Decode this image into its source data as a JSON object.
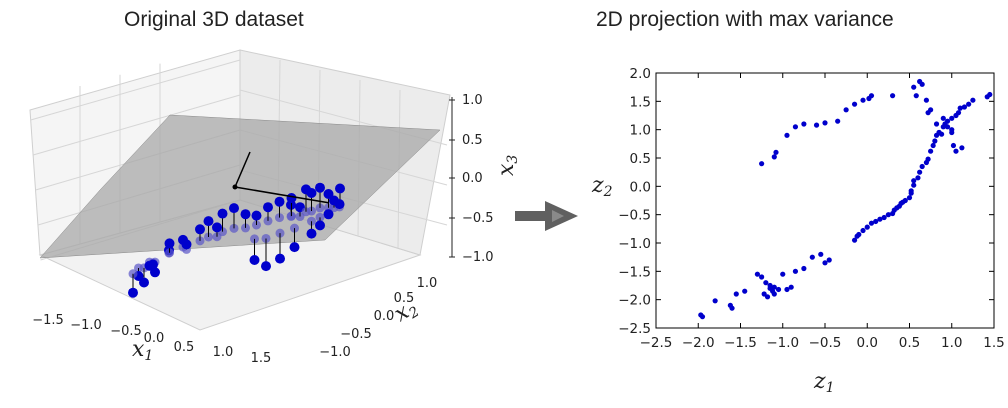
{
  "chart_data": [
    {
      "type": "scatter",
      "projection": "3d",
      "title": "Original 3D dataset",
      "xlabel": "x1",
      "ylabel": "x2",
      "zlabel": "x3",
      "x_ticks": [
        "−1.5",
        "−1.0",
        "−0.5",
        "0.0",
        "0.5",
        "1.0",
        "1.5"
      ],
      "y_ticks": [
        "−1.0",
        "−0.5",
        "0.0",
        "0.5",
        "1.0"
      ],
      "z_ticks": [
        "−1.0",
        "−0.5",
        "0.0",
        "0.5",
        "1.0"
      ],
      "xlim": [
        -1.8,
        1.8
      ],
      "ylim": [
        -1.2,
        1.2
      ],
      "zlim": [
        -1.1,
        1.1
      ],
      "grid": true,
      "plane": "gray projection plane through the data",
      "point_color": "#0000cc",
      "points": [
        {
          "x": -1.15,
          "y": -0.55,
          "z": -0.3
        },
        {
          "x": -1.1,
          "y": -0.5,
          "z": -0.45
        },
        {
          "x": -1.05,
          "y": -0.45,
          "z": -0.2
        },
        {
          "x": -1.2,
          "y": -0.6,
          "z": -0.55
        },
        {
          "x": -1.0,
          "y": -0.4,
          "z": -0.35
        },
        {
          "x": -0.95,
          "y": -0.5,
          "z": -0.15
        },
        {
          "x": -0.85,
          "y": -0.3,
          "z": -0.05
        },
        {
          "x": -0.7,
          "y": -0.2,
          "z": 0.05
        },
        {
          "x": -0.6,
          "y": -0.25,
          "z": 0.0
        },
        {
          "x": -0.5,
          "y": -0.1,
          "z": 0.15
        },
        {
          "x": -0.4,
          "y": -0.05,
          "z": 0.25
        },
        {
          "x": -0.25,
          "y": 0.05,
          "z": 0.3
        },
        {
          "x": -0.1,
          "y": 0.1,
          "z": 0.35
        },
        {
          "x": 0.05,
          "y": 0.15,
          "z": 0.2
        },
        {
          "x": 0.15,
          "y": 0.25,
          "z": 0.1
        },
        {
          "x": 0.3,
          "y": 0.3,
          "z": 0.2
        },
        {
          "x": 0.45,
          "y": 0.35,
          "z": 0.25
        },
        {
          "x": 0.6,
          "y": 0.4,
          "z": 0.15
        },
        {
          "x": 0.75,
          "y": 0.4,
          "z": 0.1
        },
        {
          "x": 0.9,
          "y": 0.45,
          "z": 0.3
        },
        {
          "x": 1.0,
          "y": 0.5,
          "z": 0.35
        },
        {
          "x": 1.1,
          "y": 0.55,
          "z": 0.2
        },
        {
          "x": 1.15,
          "y": 0.6,
          "z": 0.05
        },
        {
          "x": 1.1,
          "y": 0.55,
          "z": -0.15
        },
        {
          "x": 1.0,
          "y": 0.5,
          "z": -0.3
        },
        {
          "x": 0.9,
          "y": 0.45,
          "z": -0.4
        },
        {
          "x": 0.7,
          "y": 0.35,
          "z": -0.55
        },
        {
          "x": 0.5,
          "y": 0.3,
          "z": -0.7
        },
        {
          "x": 0.35,
          "y": 0.2,
          "z": -0.75
        },
        {
          "x": 0.2,
          "y": 0.15,
          "z": -0.6
        },
        {
          "x": 1.25,
          "y": 0.6,
          "z": 0.25
        },
        {
          "x": 1.2,
          "y": 0.65,
          "z": -0.05
        },
        {
          "x": 0.85,
          "y": 0.4,
          "z": 0.4
        },
        {
          "x": 0.65,
          "y": 0.35,
          "z": 0.3
        },
        {
          "x": -0.8,
          "y": -0.35,
          "z": 0.1
        },
        {
          "x": -0.3,
          "y": 0.0,
          "z": 0.1
        }
      ]
    },
    {
      "type": "scatter",
      "title": "2D projection with max variance",
      "xlabel": "z1",
      "ylabel": "z2",
      "xlim": [
        -2.5,
        1.5
      ],
      "ylim": [
        -2.5,
        2.0
      ],
      "x_ticks": [
        "−2.5",
        "−2.0",
        "−1.5",
        "−1.0",
        "−0.5",
        "0.0",
        "0.5",
        "1.0",
        "1.5"
      ],
      "y_ticks": [
        "2.0",
        "1.5",
        "1.0",
        "0.5",
        "0.0",
        "−0.5",
        "−1.0",
        "−1.5",
        "−2.0",
        "−2.5"
      ],
      "point_color": "#0000cc",
      "x": [
        -1.97,
        -1.95,
        -1.8,
        -1.62,
        -1.6,
        -1.55,
        -1.45,
        -1.3,
        -1.25,
        -1.22,
        -1.2,
        -1.18,
        -1.15,
        -1.15,
        -1.12,
        -1.1,
        -1.1,
        -1.05,
        -1.0,
        -0.95,
        -0.9,
        -0.85,
        -0.75,
        -0.65,
        -0.55,
        -0.5,
        -0.45,
        -0.15,
        -0.12,
        -0.1,
        -0.05,
        0.0,
        0.05,
        0.1,
        0.15,
        0.2,
        0.25,
        0.3,
        0.32,
        0.35,
        0.38,
        0.4,
        0.42,
        0.45,
        0.5,
        0.52,
        0.52,
        0.55,
        0.55,
        0.6,
        0.62,
        0.65,
        0.7,
        0.72,
        0.75,
        0.78,
        0.8,
        0.82,
        0.85,
        0.9,
        0.92,
        0.95,
        1.0,
        1.05,
        1.08,
        1.1,
        1.15,
        1.2,
        1.25,
        1.42,
        1.45,
        -1.25,
        -1.1,
        -1.08,
        -0.95,
        -0.85,
        -0.75,
        -0.6,
        -0.5,
        -0.35,
        -0.25,
        -0.15,
        -0.05,
        0.02,
        0.05,
        0.3,
        0.55,
        0.58,
        0.65,
        0.7,
        0.72,
        0.75,
        0.82,
        0.85,
        0.88,
        0.9,
        0.95,
        1.0,
        1.0,
        1.02,
        1.05,
        1.12,
        0.62
      ],
      "y": [
        -2.27,
        -2.3,
        -2.02,
        -2.1,
        -2.15,
        -1.9,
        -1.85,
        -1.55,
        -1.6,
        -1.9,
        -1.7,
        -1.95,
        -1.75,
        -1.8,
        -1.85,
        -1.78,
        -1.9,
        -1.82,
        -1.55,
        -1.82,
        -1.78,
        -1.5,
        -1.45,
        -1.25,
        -1.2,
        -1.35,
        -1.3,
        -0.95,
        -0.88,
        -0.85,
        -0.78,
        -0.72,
        -0.65,
        -0.62,
        -0.58,
        -0.55,
        -0.5,
        -0.48,
        -0.42,
        -0.38,
        -0.35,
        -0.3,
        -0.28,
        -0.25,
        -0.2,
        -0.12,
        -0.08,
        0.02,
        0.1,
        0.15,
        0.25,
        0.35,
        0.42,
        0.48,
        0.62,
        0.72,
        0.8,
        0.9,
        0.95,
        1.05,
        1.1,
        1.15,
        1.2,
        1.25,
        1.3,
        1.38,
        1.4,
        1.45,
        1.52,
        1.58,
        1.62,
        0.4,
        0.52,
        0.6,
        0.9,
        1.05,
        1.1,
        1.08,
        1.12,
        1.15,
        1.35,
        1.45,
        1.52,
        1.55,
        1.6,
        1.6,
        1.75,
        1.6,
        1.8,
        1.52,
        1.3,
        1.35,
        1.1,
        0.95,
        0.92,
        1.2,
        1.05,
        0.95,
        1.0,
        0.72,
        0.62,
        0.68,
        1.85
      ]
    }
  ]
}
